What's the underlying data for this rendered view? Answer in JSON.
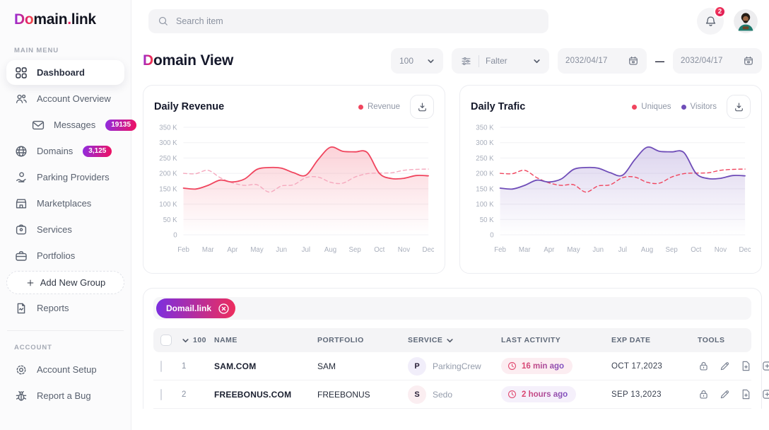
{
  "brand": {
    "prefix": "Do",
    "mid": "main",
    "dot": ".",
    "suffix": "link"
  },
  "topbar": {
    "search_placeholder": "Search item",
    "notification_count": "2"
  },
  "sidebar": {
    "main_menu_label": "MAIN MENU",
    "account_label": "ACCOUNT",
    "items": [
      {
        "id": "dashboard",
        "label": "Dashboard",
        "icon": "dashboard",
        "active": true
      },
      {
        "id": "account-overview",
        "label": "Account Overview",
        "icon": "people",
        "chevron": "up"
      },
      {
        "id": "messages",
        "label": "Messages",
        "icon": "envelope",
        "badge": "19135",
        "sub": true
      },
      {
        "id": "domains",
        "label": "Domains",
        "icon": "globe",
        "badge": "3,125",
        "chevron": "down"
      },
      {
        "id": "parking-providers",
        "label": "Parking Providers",
        "icon": "parking"
      },
      {
        "id": "marketplaces",
        "label": "Marketplaces",
        "icon": "storefront"
      },
      {
        "id": "services",
        "label": "Services",
        "icon": "services"
      },
      {
        "id": "portfolios",
        "label": "Portfolios",
        "icon": "briefcase",
        "chevron": "up"
      },
      {
        "id": "add-new-group",
        "label": "Add New Group",
        "icon": "plus",
        "type": "dashed"
      },
      {
        "id": "reports",
        "label": "Reports",
        "icon": "report"
      }
    ],
    "account_items": [
      {
        "id": "account-setup",
        "label": "Account Setup",
        "icon": "gear"
      },
      {
        "id": "report-a-bug",
        "label": "Report a Bug",
        "icon": "bug"
      }
    ]
  },
  "page": {
    "title_highlight": "D",
    "title_rest": "omain View"
  },
  "controls": {
    "page_size": "100",
    "filter_label": "Falter",
    "date_from": "2032/04/17",
    "date_separator": "—",
    "date_to": "2032/04/17"
  },
  "chart_data": [
    {
      "type": "area",
      "title": "Daily Revenue",
      "x_labels": [
        "Feb",
        "Mar",
        "Apr",
        "May",
        "Jun",
        "Jul",
        "Aug",
        "Sep",
        "Oct",
        "Nov",
        "Dec"
      ],
      "ylim": [
        0,
        350000
      ],
      "y_tick_labels": [
        "350 K",
        "300 K",
        "250 K",
        "200 K",
        "150 K",
        "100 K",
        "50 K",
        "0"
      ],
      "y_tick_values": [
        350,
        300,
        250,
        200,
        150,
        100,
        50,
        0
      ],
      "unit": "K",
      "grid": true,
      "legend_position": "top-right",
      "legend": [
        {
          "label": "Revenue",
          "color": "#F0455E"
        }
      ],
      "x_resolution": "21 points, half-month steps Feb to Dec",
      "series": [
        {
          "name": "Revenue",
          "style": "solid",
          "area": true,
          "color": "#F0455E",
          "values_k": [
            152,
            149,
            161,
            178,
            172,
            182,
            213,
            219,
            217,
            202,
            194,
            245,
            285,
            272,
            270,
            268,
            200,
            183,
            184,
            193,
            192
          ]
        },
        {
          "name": "dashed-secondary",
          "style": "dashed",
          "color": "#F5A9BE",
          "values_k": [
            200,
            199,
            210,
            186,
            169,
            161,
            163,
            139,
            159,
            163,
            186,
            188,
            171,
            168,
            188,
            199,
            201,
            202,
            210,
            213,
            214
          ]
        }
      ]
    },
    {
      "type": "area",
      "title": "Daily Trafic",
      "x_labels": [
        "Feb",
        "Mar",
        "Apr",
        "May",
        "Jun",
        "Jul",
        "Aug",
        "Sep",
        "Oct",
        "Nov",
        "Dec"
      ],
      "ylim": [
        0,
        350000
      ],
      "y_tick_labels": [
        "350 K",
        "300 K",
        "250 K",
        "200 K",
        "150 K",
        "100 K",
        "50 K",
        "0"
      ],
      "y_tick_values": [
        350,
        300,
        250,
        200,
        150,
        100,
        50,
        0
      ],
      "unit": "K",
      "grid": true,
      "legend_position": "top-right",
      "legend": [
        {
          "label": "Uniques",
          "color": "#F0455E"
        },
        {
          "label": "Visitors",
          "color": "#6F4DB8"
        }
      ],
      "x_resolution": "21 points, half-month steps Feb to Dec",
      "series": [
        {
          "name": "Visitors",
          "style": "solid",
          "area": true,
          "color": "#6F4DB8",
          "values_k": [
            152,
            149,
            161,
            178,
            172,
            182,
            213,
            219,
            217,
            202,
            194,
            245,
            285,
            272,
            270,
            268,
            200,
            183,
            184,
            193,
            192
          ]
        },
        {
          "name": "Uniques",
          "style": "dashed",
          "color": "#F0455E",
          "values_k": [
            200,
            199,
            210,
            186,
            169,
            161,
            163,
            139,
            159,
            163,
            186,
            188,
            171,
            168,
            188,
            199,
            201,
            202,
            210,
            213,
            214
          ]
        }
      ]
    }
  ],
  "table": {
    "filter_chip": "Domail.link",
    "select_count": "100",
    "columns": [
      "NAME",
      "PORTFOLIO",
      "SERVICE",
      "LAST ACTIVITY",
      "EXP DATE",
      "TOOLS"
    ],
    "tools_icons": [
      "lock",
      "pencil",
      "file-add",
      "note-add"
    ],
    "rows": [
      {
        "num": "1",
        "name": "SAM.COM",
        "portfolio": "SAM",
        "service_initial": "P",
        "service_name": "ParkingCrew",
        "service_tint": "#F1EEFA",
        "last_activity": "16 min ago",
        "activity_bg": "#FCEDF1",
        "exp_date": "OCT 17,2023"
      },
      {
        "num": "2",
        "name": "FREEBONUS.COM",
        "portfolio": "FREEBONUS",
        "service_initial": "S",
        "service_name": "Sedo",
        "service_tint": "#FBEEF1",
        "last_activity": "2 hours ago",
        "activity_bg": "#F5F0FB",
        "exp_date": "SEP 13,2023"
      }
    ]
  },
  "colors": {
    "accent_red": "#F0455E",
    "accent_purple": "#6F4DB8",
    "badge_gradient_start": "#8E2DE2",
    "badge_gradient_end": "#F1105F",
    "sidebar_bg": "#FBFBFC",
    "control_bg": "#F5F5F7"
  }
}
